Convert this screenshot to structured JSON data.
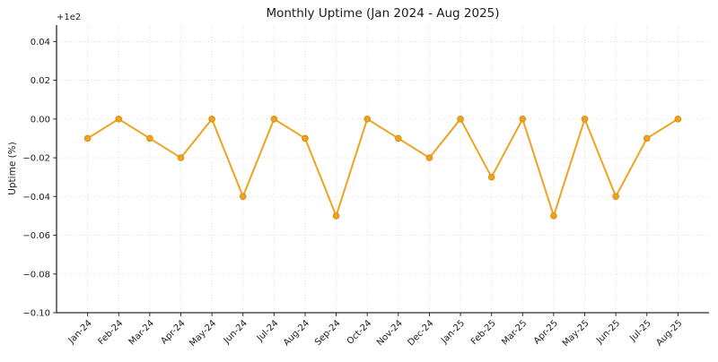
{
  "chart_data": {
    "type": "line",
    "title": "Monthly Uptime (Jan 2024 - Aug 2025)",
    "xlabel": "",
    "ylabel": "Uptime (%)",
    "offset_label": "+1e2",
    "y_offset": 100,
    "categories": [
      "Jan-24",
      "Feb-24",
      "Mar-24",
      "Apr-24",
      "May-24",
      "Jun-24",
      "Jul-24",
      "Aug-24",
      "Sep-24",
      "Oct-24",
      "Nov-24",
      "Dec-24",
      "Jan-25",
      "Feb-25",
      "Mar-25",
      "Apr-25",
      "May-25",
      "Jun-25",
      "Jul-25",
      "Aug-25"
    ],
    "values": [
      -0.01,
      0.0,
      -0.01,
      -0.02,
      0.0,
      -0.04,
      0.0,
      -0.01,
      -0.05,
      0.0,
      -0.01,
      -0.02,
      0.0,
      -0.03,
      0.0,
      -0.05,
      0.0,
      -0.04,
      -0.01,
      0.0
    ],
    "values_uptime_pct": [
      99.99,
      100.0,
      99.99,
      99.98,
      100.0,
      99.96,
      100.0,
      99.99,
      99.95,
      100.0,
      99.99,
      99.98,
      100.0,
      99.97,
      100.0,
      99.95,
      100.0,
      99.96,
      99.99,
      100.0
    ],
    "series": [
      {
        "name": "Monthly Uptime",
        "values": [
          -0.01,
          0.0,
          -0.01,
          -0.02,
          0.0,
          -0.04,
          0.0,
          -0.01,
          -0.05,
          0.0,
          -0.01,
          -0.02,
          0.0,
          -0.03,
          0.0,
          -0.05,
          0.0,
          -0.04,
          -0.01,
          0.0
        ]
      }
    ],
    "yticks": [
      0.04,
      0.02,
      0.0,
      -0.02,
      -0.04,
      -0.06,
      -0.08,
      -0.1
    ],
    "ytick_labels": [
      "0.04",
      "0.02",
      "0.00",
      "−0.02",
      "−0.04",
      "−0.06",
      "−0.08",
      "−0.10"
    ],
    "ylim": [
      -0.1,
      0.0485
    ],
    "grid": true,
    "grid_style": "dotted",
    "legend_position": "none",
    "colors": {
      "line": "#EEA320",
      "marker": "#EEA320",
      "marker_edge": "#D98F10",
      "grid": "#d8d8d8",
      "axis": "#2a2a2a",
      "text": "#1c1c1c",
      "background": "#ffffff"
    }
  }
}
